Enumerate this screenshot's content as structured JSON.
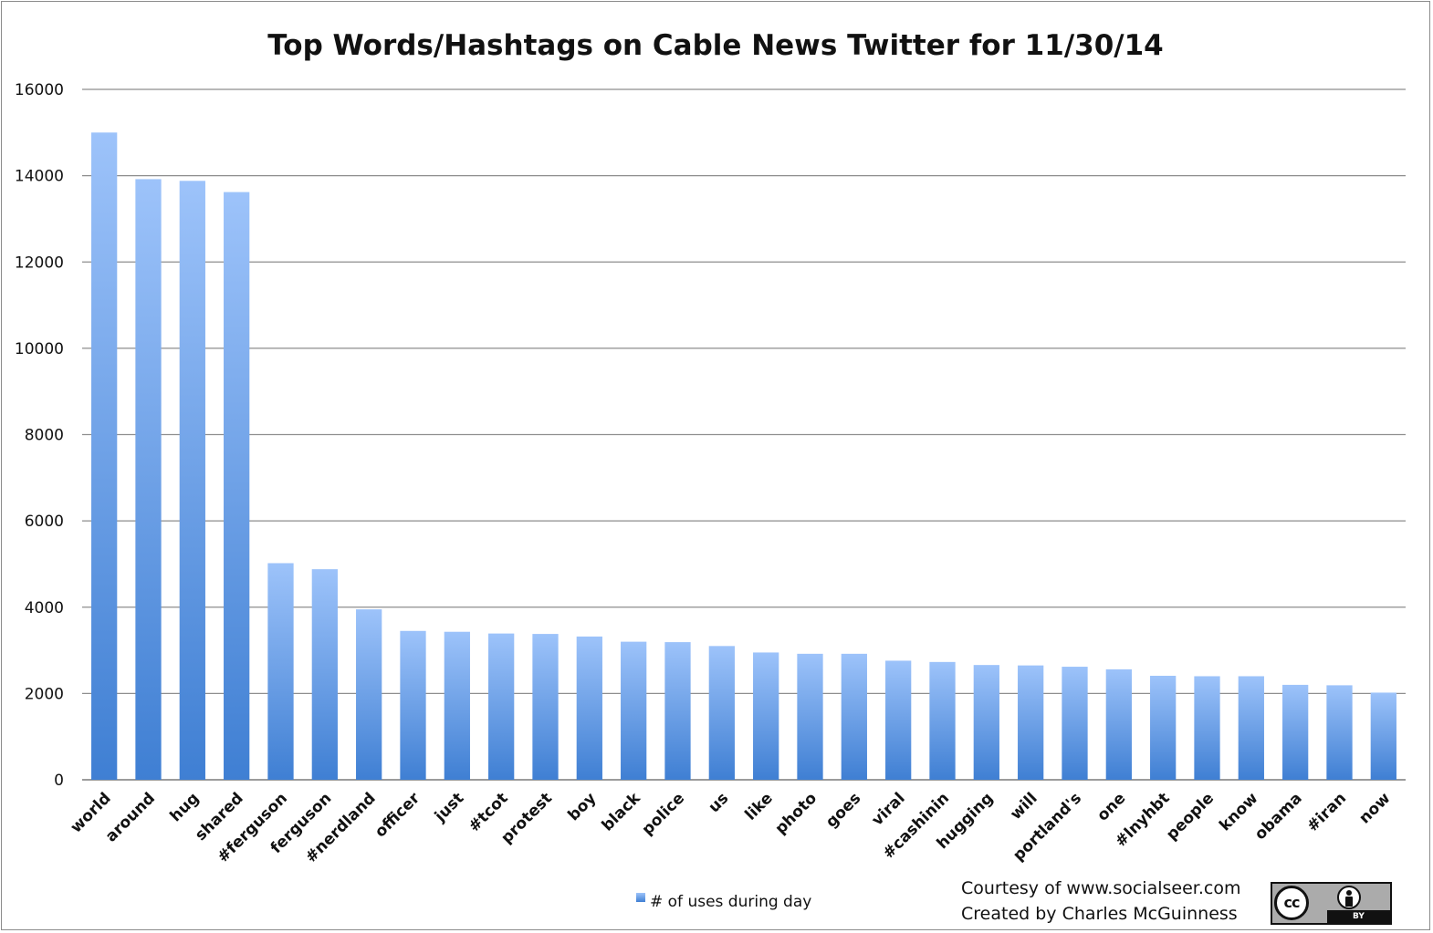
{
  "chart_data": {
    "type": "bar",
    "title": "Top Words/Hashtags on Cable News Twitter for 11/30/14",
    "xlabel": "",
    "ylabel": "",
    "ylim": [
      0,
      16000
    ],
    "yticks": [
      0,
      2000,
      4000,
      6000,
      8000,
      10000,
      12000,
      14000,
      16000
    ],
    "grid": true,
    "legend_position": "bottom",
    "categories": [
      "world",
      "around",
      "hug",
      "shared",
      "#ferguson",
      "ferguson",
      "#nerdland",
      "officer",
      "just",
      "#tcot",
      "protest",
      "boy",
      "black",
      "police",
      "us",
      "like",
      "photo",
      "goes",
      "viral",
      "#cashinin",
      "hugging",
      "will",
      "portland's",
      "one",
      "#lnyhbt",
      "people",
      "know",
      "obama",
      "#iran",
      "now"
    ],
    "series": [
      {
        "name": "# of uses during day",
        "color_top": "#9dc3fa",
        "color_bottom": "#3f7fd3",
        "values": [
          15000,
          13920,
          13880,
          13620,
          5020,
          4880,
          3950,
          3450,
          3430,
          3390,
          3380,
          3320,
          3200,
          3190,
          3100,
          2950,
          2920,
          2920,
          2760,
          2730,
          2660,
          2650,
          2620,
          2560,
          2410,
          2400,
          2400,
          2200,
          2190,
          2020
        ]
      }
    ]
  },
  "footer": {
    "courtesy": "Courtesy of www.socialseer.com",
    "created_by": "Created by Charles McGuinness"
  },
  "license_badge": {
    "cc_text": "cc",
    "by_text": "BY",
    "icon": "creative-commons-by-icon"
  }
}
